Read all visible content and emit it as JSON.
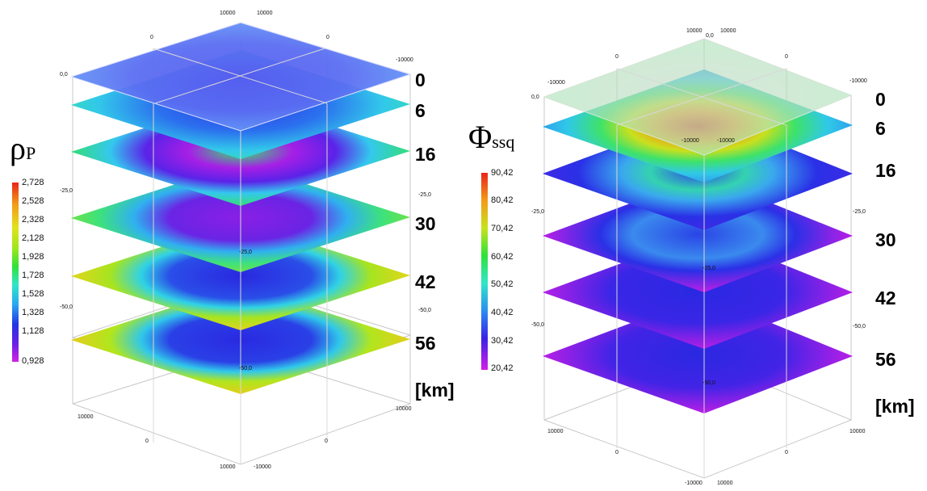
{
  "left_panel": {
    "symbol": "ρ",
    "symbol_sub": "P",
    "colorbar_labels": [
      "2,728",
      "2,528",
      "2,328",
      "2,128",
      "1,928",
      "1,728",
      "1,528",
      "1,328",
      "1,128",
      "0,928"
    ],
    "depth_labels": [
      "0",
      "6",
      "16",
      "30",
      "42",
      "56"
    ],
    "unit": "[km]",
    "axis_labels": {
      "corner_top_a": "10000",
      "corner_top_b": "10000",
      "neg_right": "-10000",
      "zero_left": "0,0",
      "z_25": "-25,0",
      "z_50": "-50,0",
      "bottom_a": "10000",
      "bottom_b": "-10000",
      "zero": "0"
    }
  },
  "right_panel": {
    "symbol": "Φ",
    "symbol_sub": "ssq",
    "colorbar_labels": [
      "90,42",
      "80,42",
      "70,42",
      "60,42",
      "50,42",
      "40,42",
      "30,42",
      "20,42"
    ],
    "depth_labels": [
      "0",
      "6",
      "16",
      "30",
      "42",
      "56"
    ],
    "unit": "[km]",
    "axis_labels": {
      "corner_top_a": "10000",
      "corner_top_b": "10000",
      "neg_right": "-10000",
      "zero_left": "0,0",
      "z_25": "-25,0",
      "z_50": "-50,0",
      "bottom_a": "10000",
      "bottom_b": "-10000",
      "zero": "0"
    }
  }
}
